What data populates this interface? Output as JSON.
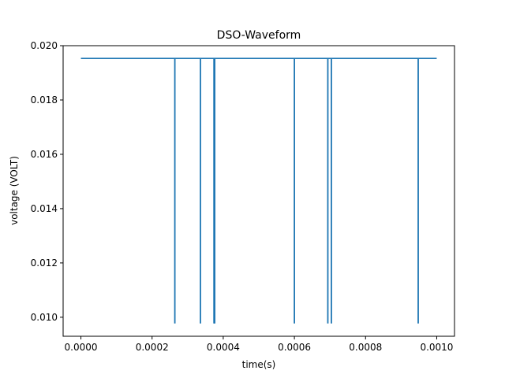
{
  "chart_data": {
    "type": "line",
    "title": "DSO-Waveform",
    "xlabel": "time(s)",
    "ylabel": "voltage (VOLT)",
    "xlim": [
      -5e-05,
      0.00105
    ],
    "ylim": [
      0.0093,
      0.02
    ],
    "xticks": [
      0.0,
      0.0002,
      0.0004,
      0.0006,
      0.0008,
      0.001
    ],
    "xtick_labels": [
      "0.0000",
      "0.0002",
      "0.0004",
      "0.0006",
      "0.0008",
      "0.0010"
    ],
    "yticks": [
      0.01,
      0.012,
      0.014,
      0.016,
      0.018,
      0.02
    ],
    "ytick_labels": [
      "0.010",
      "0.012",
      "0.014",
      "0.016",
      "0.018",
      "0.020"
    ],
    "grid": false,
    "series": [
      {
        "color": "#1f77b4",
        "baseline": 0.01953,
        "low": 0.00977,
        "x_start": 0.0,
        "x_end": 0.001,
        "dips_x": [
          0.000264,
          0.000336,
          0.000374,
          0.000376,
          0.0006,
          0.000694,
          0.000704,
          0.000948
        ]
      }
    ]
  }
}
